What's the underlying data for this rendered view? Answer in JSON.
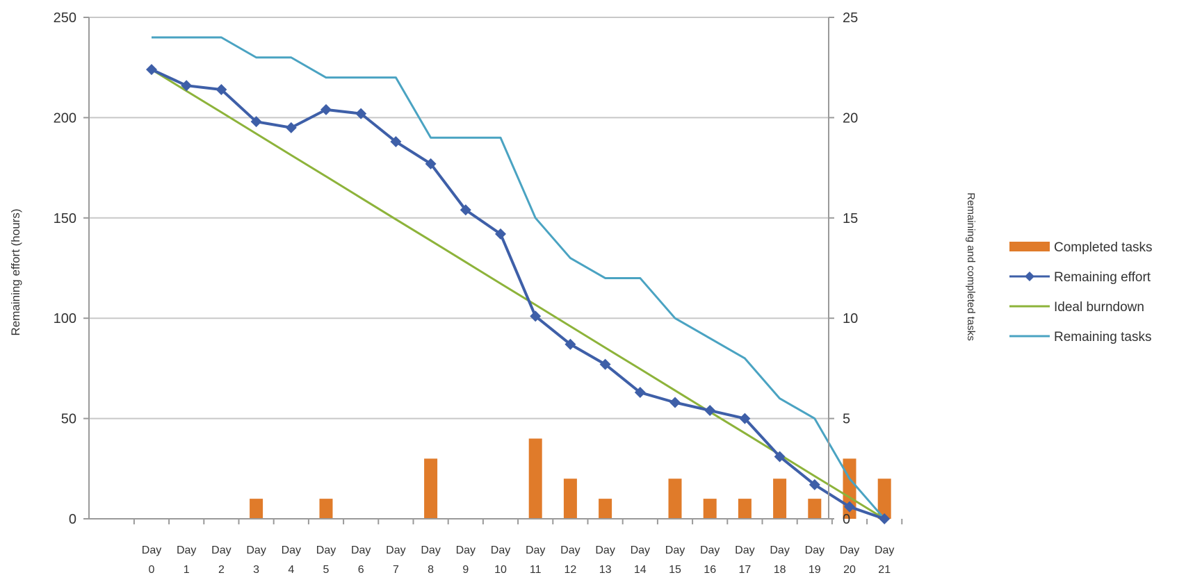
{
  "chart_data": {
    "type": "bar",
    "categories": [
      "Day 0",
      "Day 1",
      "Day 2",
      "Day 3",
      "Day 4",
      "Day 5",
      "Day 6",
      "Day 7",
      "Day 8",
      "Day 9",
      "Day 10",
      "Day 11",
      "Day 12",
      "Day 13",
      "Day 14",
      "Day 15",
      "Day 16",
      "Day 17",
      "Day 18",
      "Day 19",
      "Day 20",
      "Day 21"
    ],
    "category_lines": [
      [
        "Day",
        "0"
      ],
      [
        "Day",
        "1"
      ],
      [
        "Day",
        "2"
      ],
      [
        "Day",
        "3"
      ],
      [
        "Day",
        "4"
      ],
      [
        "Day",
        "5"
      ],
      [
        "Day",
        "6"
      ],
      [
        "Day",
        "7"
      ],
      [
        "Day",
        "8"
      ],
      [
        "Day",
        "9"
      ],
      [
        "Day",
        "10"
      ],
      [
        "Day",
        "11"
      ],
      [
        "Day",
        "12"
      ],
      [
        "Day",
        "13"
      ],
      [
        "Day",
        "14"
      ],
      [
        "Day",
        "15"
      ],
      [
        "Day",
        "16"
      ],
      [
        "Day",
        "17"
      ],
      [
        "Day",
        "18"
      ],
      [
        "Day",
        "19"
      ],
      [
        "Day",
        "20"
      ],
      [
        "Day",
        "21"
      ]
    ],
    "ylabel": "Remaining effort (hours)",
    "y2label": "Remaining and completed tasks",
    "ylim": [
      0,
      250
    ],
    "y2lim": [
      0,
      25
    ],
    "yticks": [
      0,
      50,
      100,
      150,
      200,
      250
    ],
    "y2ticks": [
      0,
      5,
      10,
      15,
      20,
      25
    ],
    "grid": true,
    "legend_position": "right",
    "series": [
      {
        "name": "Completed tasks",
        "type": "bar",
        "axis": "right",
        "color": "#E07B2A",
        "values": [
          0,
          0,
          0,
          1,
          0,
          1,
          0,
          0,
          3,
          0,
          0,
          4,
          2,
          1,
          0,
          2,
          1,
          1,
          2,
          1,
          3,
          2
        ]
      },
      {
        "name": "Remaining effort",
        "type": "line-markers",
        "axis": "left",
        "color": "#3E5FA8",
        "values": [
          224,
          216,
          214,
          198,
          195,
          204,
          202,
          188,
          177,
          154,
          142,
          101,
          87,
          77,
          63,
          58,
          54,
          50,
          31,
          17,
          6,
          0
        ]
      },
      {
        "name": "Ideal burndown",
        "type": "line",
        "axis": "left",
        "color": "#8DB33A",
        "values": [
          224,
          213.3,
          202.7,
          192,
          181.3,
          170.7,
          160,
          149.3,
          138.7,
          128,
          117.3,
          106.7,
          96,
          85.3,
          74.7,
          64,
          53.3,
          42.7,
          32,
          21.3,
          10.7,
          0
        ]
      },
      {
        "name": "Remaining tasks",
        "type": "line",
        "axis": "right",
        "color": "#4AA3C2",
        "values": [
          24,
          24,
          24,
          23,
          23,
          22,
          22,
          22,
          19,
          19,
          19,
          15,
          13,
          12,
          12,
          10,
          9,
          8,
          6,
          5,
          2,
          0
        ]
      }
    ]
  }
}
